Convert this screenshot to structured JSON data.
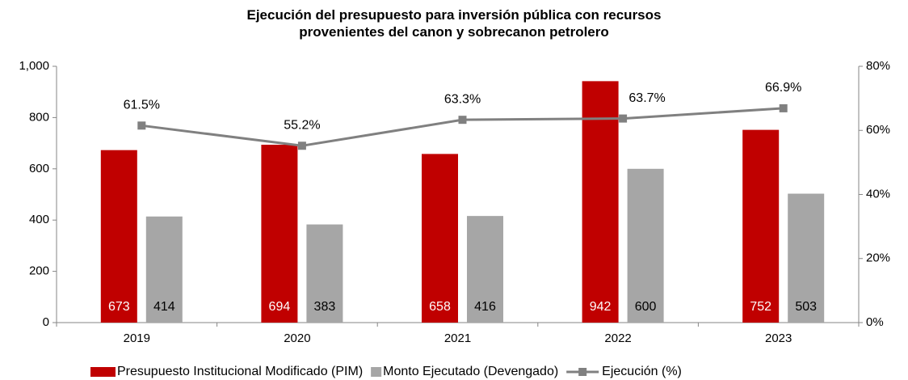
{
  "chart_data": {
    "type": "bar",
    "title": "Ejecución del presupuesto para inversión pública con recursos provenientes del canon y sobrecanon petrolero",
    "categories": [
      "2019",
      "2020",
      "2021",
      "2022",
      "2023"
    ],
    "series": [
      {
        "name": "Presupuesto Institucional Modificado (PIM)",
        "color": "#c00000",
        "values": [
          673,
          694,
          658,
          942,
          752
        ]
      },
      {
        "name": "Monto Ejecutado (Devengado)",
        "color": "#a6a6a6",
        "values": [
          414,
          383,
          416,
          600,
          503
        ]
      },
      {
        "name": "Ejecución (%)",
        "type": "line",
        "axis": "y2",
        "color": "#808080",
        "values": [
          61.5,
          55.2,
          63.3,
          63.7,
          66.9
        ],
        "value_labels": [
          "61.5%",
          "55.2%",
          "63.3%",
          "63.7%",
          "66.9%"
        ]
      }
    ],
    "ylim": [
      0,
      1000
    ],
    "yticks": [
      0,
      200,
      400,
      600,
      800,
      {
        "value": 1000,
        "label": "1,000"
      }
    ],
    "y2lim": [
      0,
      80
    ],
    "y2ticks": [
      {
        "value": 0,
        "label": "0%"
      },
      {
        "value": 20,
        "label": "20%"
      },
      {
        "value": 40,
        "label": "40%"
      },
      {
        "value": 60,
        "label": "60%"
      },
      {
        "value": 80,
        "label": "80%"
      }
    ],
    "legend": "bottom",
    "grid": false
  }
}
